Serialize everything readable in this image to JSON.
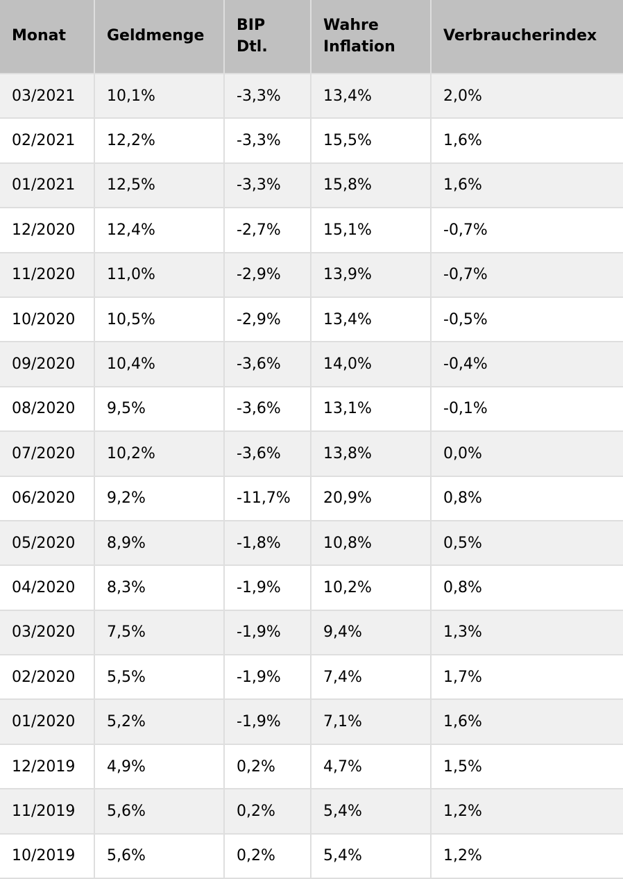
{
  "chart_data": {
    "type": "table",
    "title": "",
    "columns": [
      "Monat",
      "Geldmenge",
      "BIP Dtl.",
      "Wahre Inflation",
      "Verbraucherindex"
    ],
    "rows": [
      [
        "03/2021",
        "10,1%",
        "-3,3%",
        "13,4%",
        "2,0%"
      ],
      [
        "02/2021",
        "12,2%",
        "-3,3%",
        "15,5%",
        "1,6%"
      ],
      [
        "01/2021",
        "12,5%",
        "-3,3%",
        "15,8%",
        "1,6%"
      ],
      [
        "12/2020",
        "12,4%",
        "-2,7%",
        "15,1%",
        "-0,7%"
      ],
      [
        "11/2020",
        "11,0%",
        "-2,9%",
        "13,9%",
        "-0,7%"
      ],
      [
        "10/2020",
        "10,5%",
        "-2,9%",
        "13,4%",
        "-0,5%"
      ],
      [
        "09/2020",
        "10,4%",
        "-3,6%",
        "14,0%",
        "-0,4%"
      ],
      [
        "08/2020",
        "9,5%",
        "-3,6%",
        "13,1%",
        "-0,1%"
      ],
      [
        "07/2020",
        "10,2%",
        "-3,6%",
        "13,8%",
        "0,0%"
      ],
      [
        "06/2020",
        "9,2%",
        "-11,7%",
        "20,9%",
        "0,8%"
      ],
      [
        "05/2020",
        "8,9%",
        "-1,8%",
        "10,8%",
        "0,5%"
      ],
      [
        "04/2020",
        "8,3%",
        "-1,9%",
        "10,2%",
        "0,8%"
      ],
      [
        "03/2020",
        "7,5%",
        "-1,9%",
        "9,4%",
        "1,3%"
      ],
      [
        "02/2020",
        "5,5%",
        "-1,9%",
        "7,4%",
        "1,7%"
      ],
      [
        "01/2020",
        "5,2%",
        "-1,9%",
        "7,1%",
        "1,6%"
      ],
      [
        "12/2019",
        "4,9%",
        "0,2%",
        "4,7%",
        "1,5%"
      ],
      [
        "11/2019",
        "5,6%",
        "0,2%",
        "5,4%",
        "1,2%"
      ],
      [
        "10/2019",
        "5,6%",
        "0,2%",
        "5,4%",
        "1,2%"
      ]
    ]
  },
  "header_lines": [
    [
      "Monat"
    ],
    [
      "Geldmenge"
    ],
    [
      "BIP",
      "Dtl."
    ],
    [
      "Wahre",
      "Inflation"
    ],
    [
      "Verbraucherindex"
    ]
  ],
  "column_keys": [
    "monat",
    "geldmenge",
    "bip-dtl",
    "wahre-inflation",
    "verbraucherindex"
  ],
  "colors": {
    "header_bg": "#c0c0c0",
    "row_alt_bg": "#f0f0f0",
    "row_bg": "#ffffff",
    "border": "#dedede",
    "text": "#000000"
  }
}
